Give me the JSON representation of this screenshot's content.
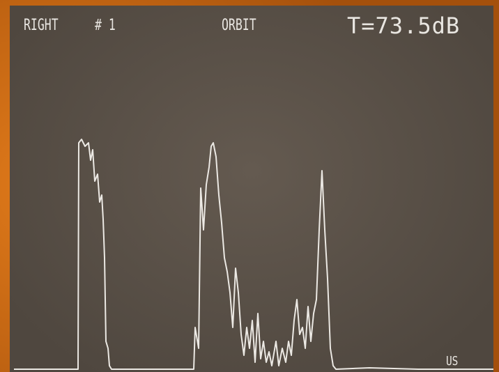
{
  "screen": {
    "channel": "RIGHT",
    "number": "# 1",
    "mode": "ORBIT",
    "threshold": "T=73.5dB",
    "unit": "US"
  }
}
